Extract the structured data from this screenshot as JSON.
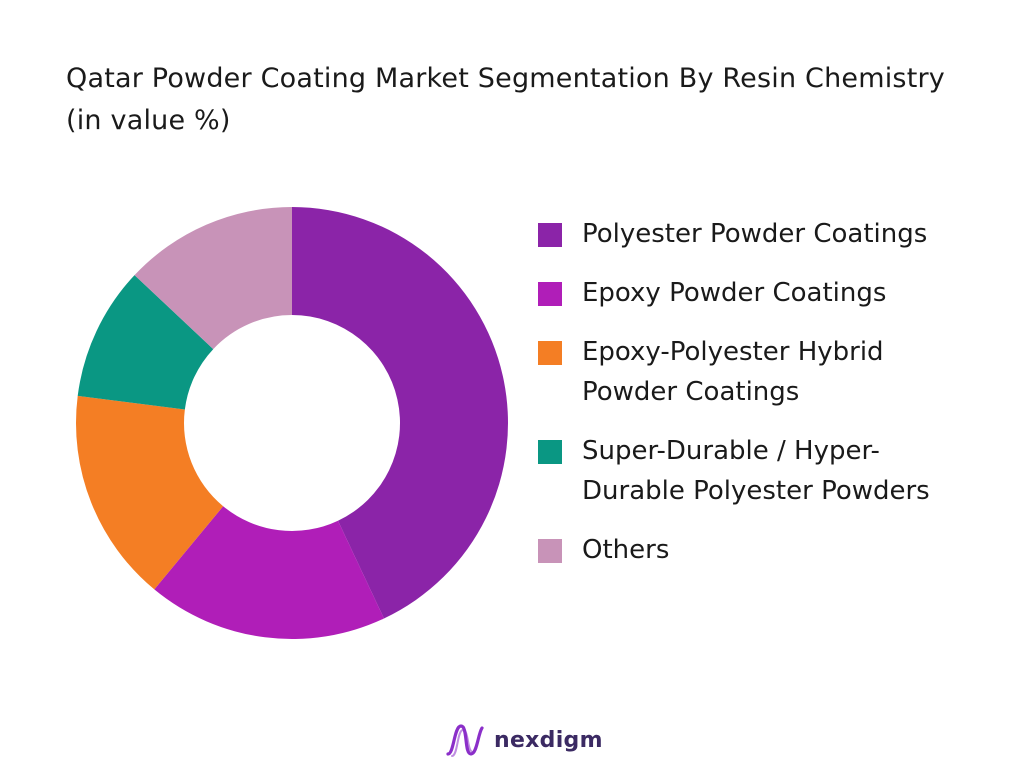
{
  "chart_data": {
    "type": "pie",
    "title": "Qatar Powder Coating Market Segmentation By Resin Chemistry (in value %)",
    "donut": true,
    "legend_position": "right",
    "categories": [
      "Polyester Powder Coatings",
      "Epoxy Powder Coatings",
      "Epoxy-Polyester Hybrid Powder Coatings",
      "Super-Durable / Hyper-Durable Polyester Powders",
      "Others"
    ],
    "values": [
      43,
      18,
      16,
      10,
      13
    ],
    "colors": [
      "#8B24A8",
      "#B01EB8",
      "#F47E24",
      "#0A9783",
      "#C893B8"
    ]
  },
  "brand": {
    "name": "nexdigm",
    "logo_color": "#8B2FC9"
  }
}
